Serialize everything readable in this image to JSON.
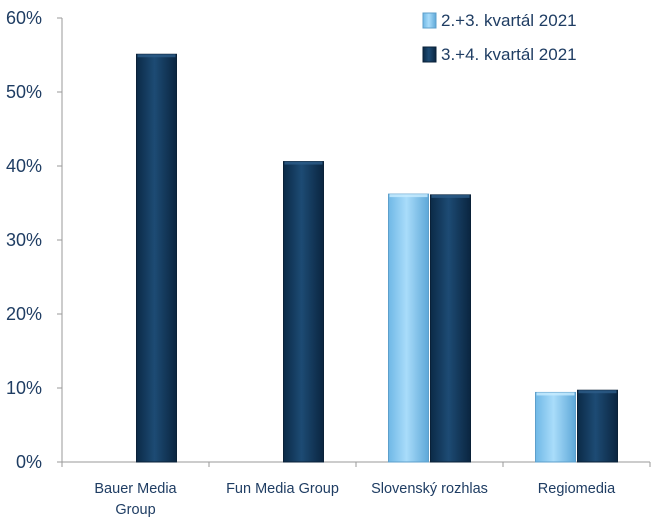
{
  "chart_data": {
    "type": "bar",
    "categories": [
      "Bauer Media Group",
      "Fun Media Group",
      "Slovenský rozhlas",
      "Regiomedia"
    ],
    "category_lines": [
      [
        "Bauer Media",
        "Group"
      ],
      [
        "Fun Media Group"
      ],
      [
        "Slovenský rozhlas"
      ],
      [
        "Regiomedia"
      ]
    ],
    "series": [
      {
        "name": "2.+3. kvartál 2021",
        "values": [
          null,
          null,
          36.2,
          9.4
        ],
        "color": "#8fd0f7"
      },
      {
        "name": "3.+4. kvartál 2021",
        "values": [
          55.1,
          40.6,
          36.1,
          9.7
        ],
        "color": "#123a5e"
      }
    ],
    "y_ticks": [
      "0%",
      "10%",
      "20%",
      "30%",
      "40%",
      "50%",
      "60%"
    ],
    "ylim": [
      0,
      60
    ],
    "legend_position": "top-right",
    "grid": false,
    "xlabel": "",
    "ylabel": "",
    "title": ""
  }
}
